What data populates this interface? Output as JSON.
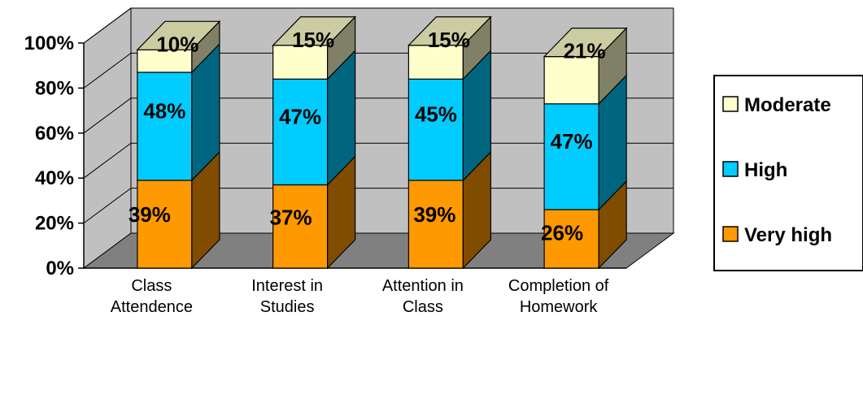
{
  "chart_data": {
    "type": "bar",
    "stacked": true,
    "percent_stacked": true,
    "three_d": true,
    "categories": [
      [
        "Class",
        "Attendence"
      ],
      [
        "Interest in",
        "Studies"
      ],
      [
        "Attention in",
        "Class"
      ],
      [
        "Completion of",
        "Homework"
      ]
    ],
    "series": [
      {
        "name": "Very high",
        "values": [
          39,
          37,
          39,
          26
        ],
        "labels": [
          "39%",
          "37%",
          "39%",
          "26%"
        ],
        "color": "#ff9900",
        "side_color": "#7f4c00"
      },
      {
        "name": "High",
        "values": [
          48,
          47,
          45,
          47
        ],
        "labels": [
          "48%",
          "47%",
          "45%",
          "47%"
        ],
        "color": "#00ccff",
        "side_color": "#006680"
      },
      {
        "name": "Moderate",
        "values": [
          10,
          15,
          15,
          21
        ],
        "labels": [
          "10%",
          "15%",
          "15%",
          "21%"
        ],
        "color": "#ffffcc",
        "side_color": "#808066"
      }
    ],
    "y_ticks": [
      "0%",
      "20%",
      "40%",
      "60%",
      "80%",
      "100%"
    ],
    "ylim": [
      0,
      100
    ],
    "grid": true,
    "legend": {
      "placement": "right",
      "order": [
        "Moderate",
        "High",
        "Very high"
      ]
    },
    "colors": {
      "wall": "#c0c0c0",
      "floor": "#808080",
      "gridline": "#000000"
    }
  }
}
